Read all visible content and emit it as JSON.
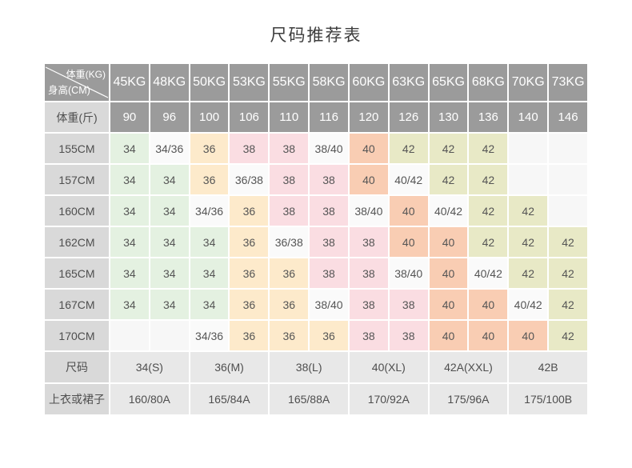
{
  "title": "尺码推荐表",
  "table": {
    "corner": {
      "weight_label": "体重(KG)",
      "height_label": "身高(CM)"
    },
    "kg_headers": [
      "45KG",
      "48KG",
      "50KG",
      "53KG",
      "55KG",
      "58KG",
      "60KG",
      "63KG",
      "65KG",
      "68KG",
      "70KG",
      "73KG"
    ],
    "jin_row": {
      "label": "体重(斤)",
      "values": [
        "90",
        "96",
        "100",
        "106",
        "110",
        "116",
        "120",
        "126",
        "130",
        "136",
        "140",
        "146"
      ]
    },
    "body_rows": [
      {
        "label": "155CM",
        "cells": [
          "34",
          "34/36",
          "36",
          "38",
          "38",
          "38/40",
          "40",
          "42",
          "42",
          "42",
          "",
          ""
        ]
      },
      {
        "label": "157CM",
        "cells": [
          "34",
          "34",
          "36",
          "36/38",
          "38",
          "38",
          "40",
          "40/42",
          "42",
          "42",
          "",
          ""
        ]
      },
      {
        "label": "160CM",
        "cells": [
          "34",
          "34",
          "34/36",
          "36",
          "38",
          "38",
          "38/40",
          "40",
          "40/42",
          "42",
          "42",
          ""
        ]
      },
      {
        "label": "162CM",
        "cells": [
          "34",
          "34",
          "34",
          "36",
          "36/38",
          "38",
          "38",
          "40",
          "40",
          "42",
          "42",
          "42"
        ]
      },
      {
        "label": "165CM",
        "cells": [
          "34",
          "34",
          "34",
          "36",
          "36",
          "38",
          "38",
          "38/40",
          "40",
          "40/42",
          "42",
          "42"
        ]
      },
      {
        "label": "167CM",
        "cells": [
          "34",
          "34",
          "34",
          "36",
          "36",
          "38/40",
          "38",
          "38",
          "40",
          "40",
          "40/42",
          "42"
        ]
      },
      {
        "label": "170CM",
        "cells": [
          "",
          "",
          "34/36",
          "36",
          "36",
          "36",
          "38",
          "38",
          "40",
          "40",
          "40",
          "42"
        ]
      }
    ],
    "size_row": {
      "label": "尺码",
      "values": [
        "34(S)",
        "36(M)",
        "38(L)",
        "40(XL)",
        "42A(XXL)",
        "42B"
      ]
    },
    "garment_row": {
      "label": "上衣或裙子",
      "values": [
        "160/80A",
        "165/84A",
        "165/88A",
        "170/92A",
        "175/96A",
        "175/100B"
      ]
    },
    "colors": {
      "header_bg": "#9b9b9b",
      "header_text": "#ffffff",
      "label_bg": "#d9d9d9",
      "body_text": "#555555",
      "footer_bg": "#e8e8e8",
      "size_34": "#e4f1e1",
      "size_36": "#fdeacb",
      "size_38": "#fadde2",
      "size_40": "#f9cdb3",
      "size_42": "#e8e9c6",
      "transition_bg": "#fafafa",
      "empty_bg": "#f7f7f7"
    }
  }
}
